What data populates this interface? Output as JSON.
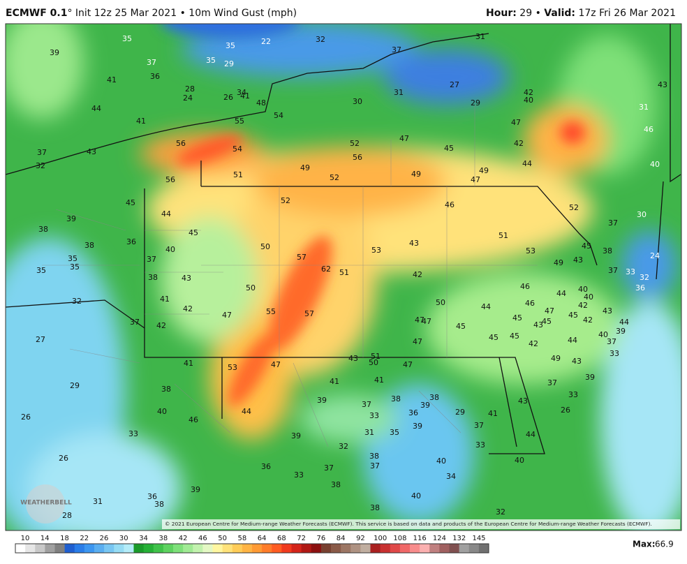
{
  "header": {
    "model": "ECMWF 0.1",
    "degree": "°",
    "init": "Init 12z 25 Mar 2021",
    "separator": "•",
    "field": "10m Wind Gust (mph)",
    "hour_label": "Hour:",
    "hour": "29",
    "valid_label": "Valid:",
    "valid": "17z Fri 26 Mar 2021"
  },
  "map_labels": [
    39,
    35,
    37,
    36,
    41,
    44,
    41,
    28,
    24,
    26,
    34,
    41,
    48,
    54,
    55,
    56,
    54,
    56,
    51,
    49,
    52,
    52,
    56,
    47,
    45,
    49,
    49,
    47,
    47,
    42,
    44,
    52,
    42,
    40,
    27,
    29,
    31,
    30,
    37,
    32,
    22,
    35,
    35,
    29,
    31,
    43,
    31,
    46,
    40,
    30,
    37,
    37,
    43,
    32,
    45,
    44,
    45,
    40,
    36,
    37,
    38,
    43,
    41,
    42,
    42,
    37,
    32,
    38,
    35,
    35,
    35,
    38,
    39,
    52,
    50,
    57,
    62,
    51,
    53,
    43,
    42,
    46,
    51,
    53,
    49,
    50,
    55,
    57,
    47,
    50,
    44,
    47,
    47,
    45,
    47,
    45,
    45,
    46,
    46,
    45,
    45,
    43,
    47,
    44,
    43,
    45,
    40,
    40,
    42,
    43,
    45,
    42,
    40,
    37,
    44,
    39,
    44,
    42,
    49,
    43,
    33,
    39,
    37,
    33,
    43,
    26,
    44,
    40,
    41,
    27,
    29,
    41,
    53,
    47,
    43,
    51,
    50,
    47,
    41,
    41,
    38,
    40,
    46,
    44,
    39,
    37,
    38,
    39,
    38,
    36,
    39,
    33,
    31,
    35,
    39,
    32,
    38,
    37,
    37,
    38,
    33,
    36,
    39,
    36,
    38,
    33,
    26,
    26,
    31,
    28,
    38,
    40,
    40,
    34,
    32,
    33,
    37,
    29,
    33,
    32,
    36,
    37,
    38,
    24
  ],
  "watermark": "WEATHERBELL",
  "copyright": "© 2021 European Centre for Medium-range Weather Forecasts (ECMWF). This service is based on data and products of the European Centre for Medium-range Weather Forecasts (ECMWF).",
  "colorbar_ticks": [
    10,
    14,
    18,
    22,
    26,
    30,
    34,
    38,
    42,
    46,
    50,
    58,
    64,
    68,
    72,
    76,
    84,
    92,
    100,
    108,
    116,
    124,
    132,
    145
  ],
  "max_label": "Max:",
  "max_value": 66.9
}
